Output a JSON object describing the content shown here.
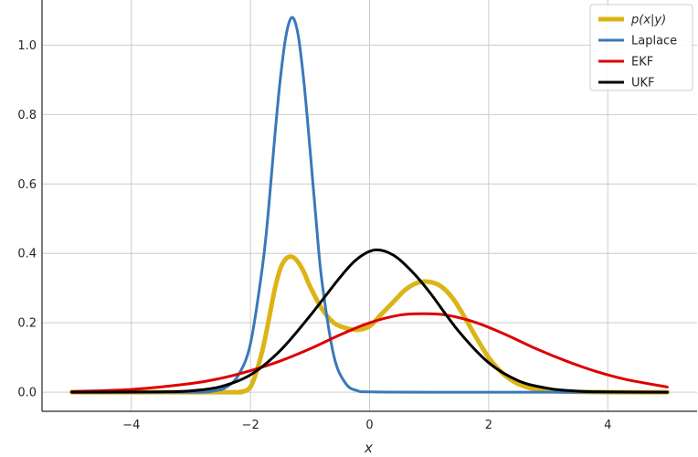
{
  "chart_data": {
    "type": "line",
    "xlabel": "x",
    "ylabel": "",
    "xlim": [
      -5.5,
      5.5
    ],
    "ylim": [
      -0.055,
      1.13
    ],
    "xticks": [
      -4,
      -2,
      0,
      2,
      4
    ],
    "xtick_labels": [
      "−4",
      "−2",
      "0",
      "2",
      "4"
    ],
    "yticks": [
      0.0,
      0.2,
      0.4,
      0.6,
      0.8,
      1.0
    ],
    "ytick_labels": [
      "0.0",
      "0.2",
      "0.4",
      "0.6",
      "0.8",
      "1.0"
    ],
    "grid": true,
    "legend_position": "top-right",
    "series": [
      {
        "name": "p(x|y)",
        "color": "#dcb416",
        "x": [
          -5,
          -2.4,
          -2.2,
          -2.0,
          -1.8,
          -1.6,
          -1.5,
          -1.4,
          -1.3,
          -1.2,
          -1.1,
          -1.0,
          -0.8,
          -0.6,
          -0.4,
          -0.2,
          0.0,
          0.2,
          0.4,
          0.6,
          0.8,
          1.0,
          1.2,
          1.4,
          1.6,
          1.8,
          2.0,
          2.2,
          2.4,
          2.6,
          2.8,
          3.0,
          3.5,
          4.0,
          5.0
        ],
        "y": [
          0.0,
          0.0,
          0.0,
          0.015,
          0.12,
          0.29,
          0.355,
          0.385,
          0.39,
          0.375,
          0.345,
          0.305,
          0.24,
          0.2,
          0.185,
          0.18,
          0.19,
          0.225,
          0.26,
          0.295,
          0.315,
          0.318,
          0.305,
          0.27,
          0.215,
          0.155,
          0.1,
          0.06,
          0.033,
          0.017,
          0.008,
          0.004,
          0.001,
          0.0,
          0.0
        ]
      },
      {
        "name": "Laplace",
        "color": "#3a78bb",
        "x": [
          -5,
          -3.0,
          -2.6,
          -2.4,
          -2.2,
          -2.0,
          -1.8,
          -1.7,
          -1.6,
          -1.5,
          -1.4,
          -1.3,
          -1.2,
          -1.1,
          -1.0,
          -0.9,
          -0.8,
          -0.6,
          -0.4,
          -0.2,
          0.0,
          1.0,
          5.0
        ],
        "y": [
          0.0,
          0.0,
          0.004,
          0.015,
          0.05,
          0.14,
          0.36,
          0.52,
          0.72,
          0.9,
          1.03,
          1.08,
          1.03,
          0.89,
          0.7,
          0.5,
          0.32,
          0.105,
          0.025,
          0.004,
          0.001,
          0.0,
          0.0
        ]
      },
      {
        "name": "EKF",
        "color": "#dd0000",
        "x": [
          -5,
          -4.0,
          -3.0,
          -2.5,
          -2.0,
          -1.5,
          -1.0,
          -0.5,
          0.0,
          0.5,
          0.9,
          1.3,
          1.8,
          2.3,
          2.8,
          3.3,
          3.8,
          4.3,
          5.0
        ],
        "y": [
          0.002,
          0.008,
          0.025,
          0.04,
          0.062,
          0.09,
          0.125,
          0.165,
          0.2,
          0.222,
          0.226,
          0.222,
          0.2,
          0.165,
          0.125,
          0.09,
          0.06,
          0.037,
          0.015
        ]
      },
      {
        "name": "UKF",
        "color": "#000000",
        "x": [
          -5,
          -3.5,
          -3.0,
          -2.5,
          -2.0,
          -1.5,
          -1.0,
          -0.5,
          -0.2,
          0.1,
          0.4,
          0.7,
          1.0,
          1.5,
          2.0,
          2.5,
          3.0,
          3.5,
          4.0,
          5.0
        ],
        "y": [
          0.0,
          0.001,
          0.004,
          0.016,
          0.05,
          0.12,
          0.22,
          0.33,
          0.385,
          0.41,
          0.395,
          0.35,
          0.29,
          0.175,
          0.085,
          0.033,
          0.011,
          0.003,
          0.001,
          0.0
        ]
      }
    ]
  }
}
